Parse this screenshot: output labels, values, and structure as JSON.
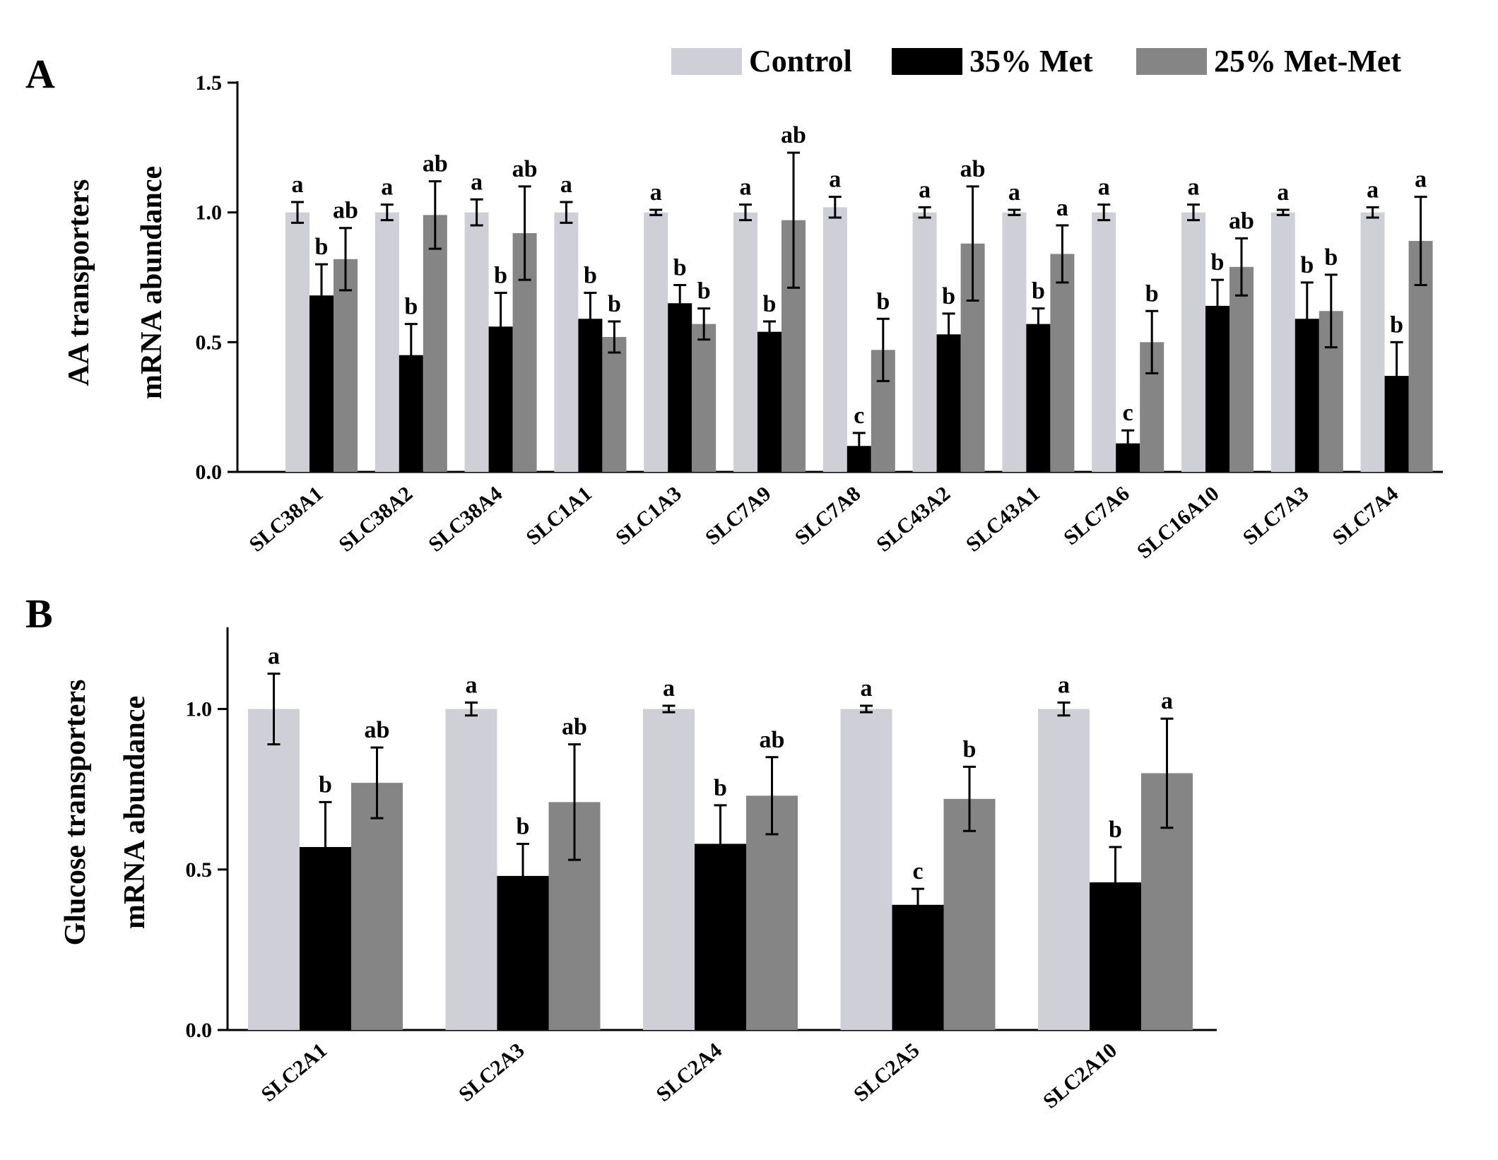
{
  "legend": [
    {
      "name": "Control",
      "color": "#cfcfd8"
    },
    {
      "name": "35% Met",
      "color": "#000000"
    },
    {
      "name": "25% Met-Met",
      "color": "#858585"
    }
  ],
  "chart_data": [
    {
      "type": "bar",
      "panel": "A",
      "ylabel": [
        "AA transporters",
        "mRNA abundance"
      ],
      "ylim": [
        0,
        1.5
      ],
      "yticks": [
        "0.0",
        "0.5",
        "1.0",
        "1.5"
      ],
      "categories": [
        "SLC38A1",
        "SLC38A2",
        "SLC38A4",
        "SLC1A1",
        "SLC1A3",
        "SLC7A9",
        "SLC7A8",
        "SLC43A2",
        "SLC43A1",
        "SLC7A6",
        "SLC16A10",
        "SLC7A3",
        "SLC7A4"
      ],
      "series": [
        {
          "name": "Control",
          "values": [
            1.0,
            1.0,
            1.0,
            1.0,
            1.0,
            1.0,
            1.02,
            1.0,
            1.0,
            1.0,
            1.0,
            1.0,
            1.0
          ],
          "errors": [
            0.04,
            0.03,
            0.05,
            0.04,
            0.01,
            0.03,
            0.04,
            0.02,
            0.01,
            0.03,
            0.03,
            0.01,
            0.02
          ],
          "labels": [
            "a",
            "a",
            "a",
            "a",
            "a",
            "a",
            "a",
            "a",
            "a",
            "a",
            "a",
            "a",
            "a"
          ]
        },
        {
          "name": "35% Met",
          "values": [
            0.68,
            0.45,
            0.56,
            0.59,
            0.65,
            0.54,
            0.1,
            0.53,
            0.57,
            0.11,
            0.64,
            0.59,
            0.37
          ],
          "errors": [
            0.12,
            0.12,
            0.13,
            0.1,
            0.07,
            0.04,
            0.05,
            0.08,
            0.06,
            0.05,
            0.1,
            0.14,
            0.13
          ],
          "labels": [
            "b",
            "b",
            "b",
            "b",
            "b",
            "b",
            "c",
            "b",
            "b",
            "c",
            "b",
            "b",
            "b"
          ]
        },
        {
          "name": "25% Met-Met",
          "values": [
            0.82,
            0.99,
            0.92,
            0.52,
            0.57,
            0.97,
            0.47,
            0.88,
            0.84,
            0.5,
            0.79,
            0.62,
            0.89
          ],
          "errors": [
            0.12,
            0.13,
            0.18,
            0.06,
            0.06,
            0.26,
            0.12,
            0.22,
            0.11,
            0.12,
            0.11,
            0.14,
            0.17
          ],
          "labels": [
            "ab",
            "ab",
            "ab",
            "b",
            "b",
            "ab",
            "b",
            "ab",
            "a",
            "b",
            "ab",
            "b",
            "a"
          ]
        }
      ]
    },
    {
      "type": "bar",
      "panel": "B",
      "ylabel": [
        "Glucose transporters",
        "mRNA abundance"
      ],
      "ylim": [
        0,
        1.25
      ],
      "yticks": [
        "0.0",
        "0.5",
        "1.0"
      ],
      "categories": [
        "SLC2A1",
        "SLC2A3",
        "SLC2A4",
        "SLC2A5",
        "SLC2A10"
      ],
      "series": [
        {
          "name": "Control",
          "values": [
            1.0,
            1.0,
            1.0,
            1.0,
            1.0
          ],
          "errors": [
            0.11,
            0.02,
            0.01,
            0.01,
            0.02
          ],
          "labels": [
            "a",
            "a",
            "a",
            "a",
            "a"
          ]
        },
        {
          "name": "35% Met",
          "values": [
            0.57,
            0.48,
            0.58,
            0.39,
            0.46
          ],
          "errors": [
            0.14,
            0.1,
            0.12,
            0.05,
            0.11
          ],
          "labels": [
            "b",
            "b",
            "b",
            "c",
            "b"
          ]
        },
        {
          "name": "25% Met-Met",
          "values": [
            0.77,
            0.71,
            0.73,
            0.72,
            0.8
          ],
          "errors": [
            0.11,
            0.18,
            0.12,
            0.1,
            0.17
          ],
          "labels": [
            "ab",
            "ab",
            "ab",
            "b",
            "a"
          ]
        }
      ]
    }
  ]
}
